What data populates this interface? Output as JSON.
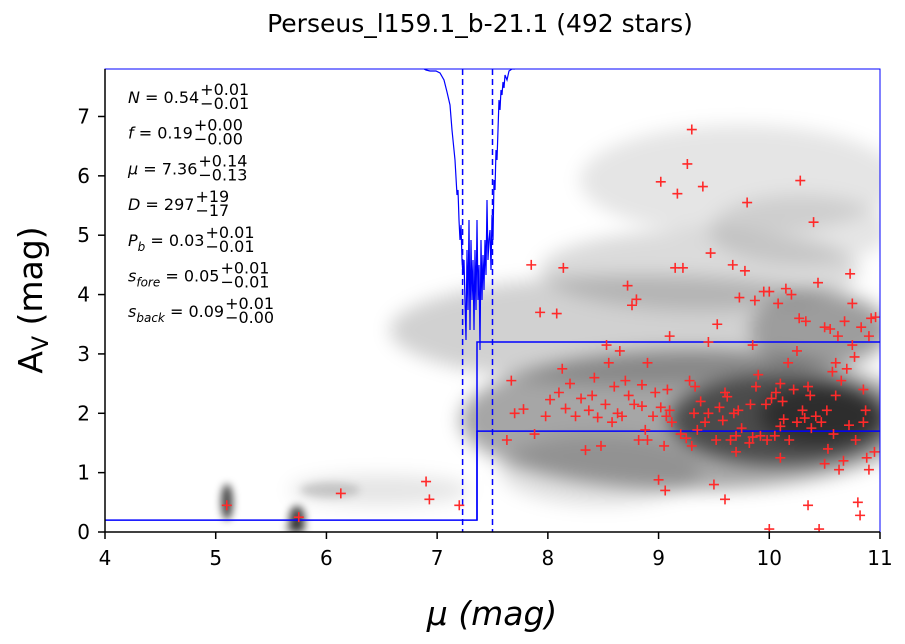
{
  "chart_data": {
    "type": "scatter",
    "title": "Perseus_l159.1_b-21.1 (492 stars)",
    "xlabel": "μ (mag)",
    "ylabel": "A_V (mag)",
    "xlim": [
      4,
      11
    ],
    "ylim": [
      0,
      7.8
    ],
    "xticks": [
      "4",
      "5",
      "6",
      "7",
      "8",
      "9",
      "10",
      "11"
    ],
    "yticks": [
      "0",
      "1",
      "2",
      "3",
      "4",
      "5",
      "6",
      "7"
    ],
    "grid": false,
    "colors": {
      "stars": "#ff2a2a",
      "model": "#0000ff",
      "density": "#000000",
      "frame": "#0000ff"
    },
    "annotations": [
      {
        "sym": "N",
        "val": "0.54",
        "up": "+0.01",
        "lo": "−0.01"
      },
      {
        "sym": "f",
        "val": "0.19",
        "up": "+0.00",
        "lo": "−0.00"
      },
      {
        "sym": "μ",
        "val": "7.36",
        "up": "+0.14",
        "lo": "−0.13"
      },
      {
        "sym": "D",
        "val": "297",
        "up": "+19",
        "lo": "−17"
      },
      {
        "sym": "P",
        "sub": "b",
        "val": "0.03",
        "up": "+0.01",
        "lo": "−0.01"
      },
      {
        "sym": "s",
        "sub": "fore",
        "val": "0.05",
        "up": "+0.01",
        "lo": "−0.01"
      },
      {
        "sym": "s",
        "sub": "back",
        "val": "0.09",
        "up": "+0.01",
        "lo": "−0.00"
      }
    ],
    "model": {
      "foreground_av": 0.2,
      "cloud_distance_modulus": 7.36,
      "background_av_low": 1.7,
      "background_av_high": 3.2,
      "mu_ci": [
        7.23,
        7.5
      ]
    },
    "stars": [
      [
        5.1,
        0.45
      ],
      [
        5.75,
        0.25
      ],
      [
        6.13,
        0.65
      ],
      [
        6.9,
        0.85
      ],
      [
        6.93,
        0.55
      ],
      [
        7.2,
        0.45
      ],
      [
        7.63,
        1.55
      ],
      [
        7.7,
        2.0
      ],
      [
        7.67,
        2.55
      ],
      [
        7.78,
        2.07
      ],
      [
        7.85,
        4.5
      ],
      [
        7.88,
        1.65
      ],
      [
        7.93,
        3.7
      ],
      [
        7.98,
        1.95
      ],
      [
        8.02,
        2.23
      ],
      [
        8.08,
        3.68
      ],
      [
        8.1,
        2.35
      ],
      [
        8.14,
        4.45
      ],
      [
        8.13,
        2.75
      ],
      [
        8.16,
        2.08
      ],
      [
        8.25,
        1.95
      ],
      [
        8.3,
        2.25
      ],
      [
        8.34,
        1.38
      ],
      [
        8.37,
        2.05
      ],
      [
        8.4,
        2.3
      ],
      [
        8.45,
        1.93
      ],
      [
        8.48,
        1.45
      ],
      [
        8.52,
        2.15
      ],
      [
        8.53,
        3.15
      ],
      [
        8.55,
        2.85
      ],
      [
        8.6,
        2.45
      ],
      [
        8.63,
        2.0
      ],
      [
        8.67,
        1.95
      ],
      [
        8.7,
        2.55
      ],
      [
        8.72,
        4.15
      ],
      [
        8.73,
        2.3
      ],
      [
        8.76,
        3.82
      ],
      [
        8.78,
        2.15
      ],
      [
        8.8,
        3.92
      ],
      [
        8.82,
        1.55
      ],
      [
        8.85,
        2.12
      ],
      [
        8.88,
        1.72
      ],
      [
        8.9,
        2.85
      ],
      [
        8.95,
        1.95
      ],
      [
        8.97,
        2.35
      ],
      [
        9.0,
        0.88
      ],
      [
        9.02,
        5.9
      ],
      [
        9.02,
        2.1
      ],
      [
        9.05,
        1.45
      ],
      [
        9.06,
        0.7
      ],
      [
        9.07,
        1.95
      ],
      [
        9.1,
        2.05
      ],
      [
        9.12,
        1.85
      ],
      [
        9.15,
        4.45
      ],
      [
        9.17,
        5.7
      ],
      [
        9.2,
        1.65
      ],
      [
        9.22,
        4.45
      ],
      [
        9.25,
        1.58
      ],
      [
        9.26,
        6.2
      ],
      [
        9.28,
        2.55
      ],
      [
        9.3,
        6.78
      ],
      [
        9.32,
        2.0
      ],
      [
        9.35,
        1.72
      ],
      [
        9.38,
        2.2
      ],
      [
        9.4,
        5.82
      ],
      [
        9.42,
        1.85
      ],
      [
        9.45,
        2.0
      ],
      [
        9.47,
        4.7
      ],
      [
        9.5,
        0.8
      ],
      [
        9.52,
        1.55
      ],
      [
        9.53,
        3.5
      ],
      [
        9.55,
        2.1
      ],
      [
        9.58,
        1.88
      ],
      [
        9.6,
        0.55
      ],
      [
        9.62,
        2.28
      ],
      [
        9.65,
        1.55
      ],
      [
        9.67,
        4.5
      ],
      [
        9.68,
        2.0
      ],
      [
        9.7,
        1.62
      ],
      [
        9.72,
        2.05
      ],
      [
        9.73,
        3.95
      ],
      [
        9.75,
        1.75
      ],
      [
        9.78,
        4.4
      ],
      [
        9.8,
        5.55
      ],
      [
        9.82,
        1.5
      ],
      [
        9.83,
        2.15
      ],
      [
        9.85,
        1.6
      ],
      [
        9.87,
        3.9
      ],
      [
        9.9,
        2.65
      ],
      [
        9.92,
        1.62
      ],
      [
        9.95,
        4.05
      ],
      [
        9.97,
        2.15
      ],
      [
        9.98,
        1.55
      ],
      [
        10.0,
        0.05
      ],
      [
        10.0,
        4.05
      ],
      [
        10.02,
        2.25
      ],
      [
        10.05,
        1.62
      ],
      [
        10.06,
        2.35
      ],
      [
        10.08,
        3.85
      ],
      [
        10.1,
        1.78
      ],
      [
        10.12,
        2.2
      ],
      [
        10.13,
        1.9
      ],
      [
        10.15,
        4.1
      ],
      [
        10.17,
        2.85
      ],
      [
        10.18,
        1.55
      ],
      [
        10.2,
        4.0
      ],
      [
        10.22,
        2.4
      ],
      [
        10.25,
        1.85
      ],
      [
        10.27,
        3.6
      ],
      [
        10.28,
        5.92
      ],
      [
        10.3,
        2.05
      ],
      [
        10.32,
        1.92
      ],
      [
        10.33,
        3.55
      ],
      [
        10.35,
        0.45
      ],
      [
        10.37,
        2.3
      ],
      [
        10.38,
        1.75
      ],
      [
        10.4,
        5.22
      ],
      [
        10.42,
        1.95
      ],
      [
        10.44,
        4.2
      ],
      [
        10.45,
        0.05
      ],
      [
        10.47,
        1.85
      ],
      [
        10.5,
        3.45
      ],
      [
        10.52,
        2.05
      ],
      [
        10.53,
        1.4
      ],
      [
        10.55,
        3.42
      ],
      [
        10.57,
        2.7
      ],
      [
        10.58,
        1.65
      ],
      [
        10.6,
        2.85
      ],
      [
        10.62,
        3.3
      ],
      [
        10.63,
        1.05
      ],
      [
        10.65,
        2.55
      ],
      [
        10.67,
        1.2
      ],
      [
        10.68,
        3.55
      ],
      [
        10.7,
        2.75
      ],
      [
        10.72,
        1.8
      ],
      [
        10.73,
        4.35
      ],
      [
        10.75,
        3.85
      ],
      [
        10.77,
        2.95
      ],
      [
        10.78,
        1.55
      ],
      [
        10.8,
        0.5
      ],
      [
        10.82,
        0.28
      ],
      [
        10.83,
        3.45
      ],
      [
        10.85,
        1.85
      ],
      [
        10.87,
        2.05
      ],
      [
        10.88,
        1.25
      ],
      [
        10.9,
        3.3
      ],
      [
        10.92,
        3.6
      ],
      [
        10.95,
        1.35
      ],
      [
        10.96,
        3.62
      ],
      [
        8.2,
        2.5
      ],
      [
        8.42,
        2.6
      ],
      [
        8.58,
        1.85
      ],
      [
        8.85,
        2.48
      ],
      [
        9.08,
        2.4
      ],
      [
        9.33,
        2.45
      ],
      [
        9.6,
        2.35
      ],
      [
        9.88,
        2.45
      ],
      [
        10.1,
        2.5
      ],
      [
        10.35,
        2.45
      ],
      [
        10.6,
        2.3
      ],
      [
        10.85,
        2.4
      ],
      [
        8.9,
        1.55
      ],
      [
        9.3,
        1.45
      ],
      [
        9.7,
        1.35
      ],
      [
        10.1,
        1.25
      ],
      [
        10.5,
        1.15
      ],
      [
        10.9,
        1.05
      ],
      [
        9.45,
        3.2
      ],
      [
        9.85,
        3.15
      ],
      [
        10.25,
        3.05
      ],
      [
        10.75,
        3.15
      ],
      [
        9.1,
        3.3
      ],
      [
        8.65,
        3.05
      ]
    ]
  }
}
